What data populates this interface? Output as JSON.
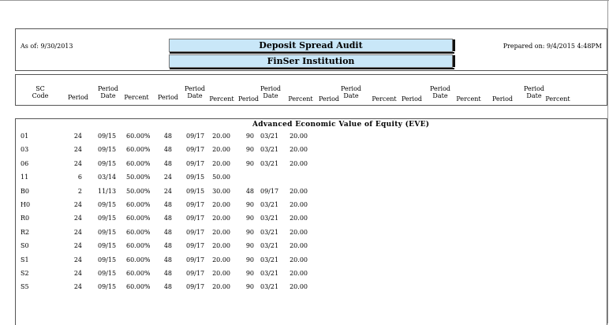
{
  "report": {
    "as_of": "As of: 9/30/2013",
    "title": "Deposit Spread Audit",
    "institution": "FinSer Institution",
    "prepared_on": "Prepared on: 9/4/2015  4:48PM"
  },
  "columns": {
    "sc_code_1": "SC",
    "sc_code_2": "Code",
    "period": "Period",
    "period_date_1": "Period",
    "period_date_2": "Date",
    "percent": "Percent"
  },
  "section_title": "Advanced Economic Value of Equity (EVE)",
  "rows": [
    {
      "code": "01",
      "p1": "24",
      "d1": "09/15",
      "pc1": "60.00%",
      "p2": "48",
      "d2": "09/17",
      "pc2": "20.00",
      "p3": "90",
      "d3": "03/21",
      "pc3": "20.00"
    },
    {
      "code": "03",
      "p1": "24",
      "d1": "09/15",
      "pc1": "60.00%",
      "p2": "48",
      "d2": "09/17",
      "pc2": "20.00",
      "p3": "90",
      "d3": "03/21",
      "pc3": "20.00"
    },
    {
      "code": "06",
      "p1": "24",
      "d1": "09/15",
      "pc1": "60.00%",
      "p2": "48",
      "d2": "09/17",
      "pc2": "20.00",
      "p3": "90",
      "d3": "03/21",
      "pc3": "20.00"
    },
    {
      "code": "11",
      "p1": "6",
      "d1": "03/14",
      "pc1": "50.00%",
      "p2": "24",
      "d2": "09/15",
      "pc2": "50.00",
      "p3": "",
      "d3": "",
      "pc3": ""
    },
    {
      "code": "B0",
      "p1": "2",
      "d1": "11/13",
      "pc1": "50.00%",
      "p2": "24",
      "d2": "09/15",
      "pc2": "30.00",
      "p3": "48",
      "d3": "09/17",
      "pc3": "20.00"
    },
    {
      "code": "H0",
      "p1": "24",
      "d1": "09/15",
      "pc1": "60.00%",
      "p2": "48",
      "d2": "09/17",
      "pc2": "20.00",
      "p3": "90",
      "d3": "03/21",
      "pc3": "20.00"
    },
    {
      "code": "R0",
      "p1": "24",
      "d1": "09/15",
      "pc1": "60.00%",
      "p2": "48",
      "d2": "09/17",
      "pc2": "20.00",
      "p3": "90",
      "d3": "03/21",
      "pc3": "20.00"
    },
    {
      "code": "R2",
      "p1": "24",
      "d1": "09/15",
      "pc1": "60.00%",
      "p2": "48",
      "d2": "09/17",
      "pc2": "20.00",
      "p3": "90",
      "d3": "03/21",
      "pc3": "20.00"
    },
    {
      "code": "S0",
      "p1": "24",
      "d1": "09/15",
      "pc1": "60.00%",
      "p2": "48",
      "d2": "09/17",
      "pc2": "20.00",
      "p3": "90",
      "d3": "03/21",
      "pc3": "20.00"
    },
    {
      "code": "S1",
      "p1": "24",
      "d1": "09/15",
      "pc1": "60.00%",
      "p2": "48",
      "d2": "09/17",
      "pc2": "20.00",
      "p3": "90",
      "d3": "03/21",
      "pc3": "20.00"
    },
    {
      "code": "S2",
      "p1": "24",
      "d1": "09/15",
      "pc1": "60.00%",
      "p2": "48",
      "d2": "09/17",
      "pc2": "20.00",
      "p3": "90",
      "d3": "03/21",
      "pc3": "20.00"
    },
    {
      "code": "S5",
      "p1": "24",
      "d1": "09/15",
      "pc1": "60.00%",
      "p2": "48",
      "d2": "09/17",
      "pc2": "20.00",
      "p3": "90",
      "d3": "03/21",
      "pc3": "20.00"
    }
  ]
}
